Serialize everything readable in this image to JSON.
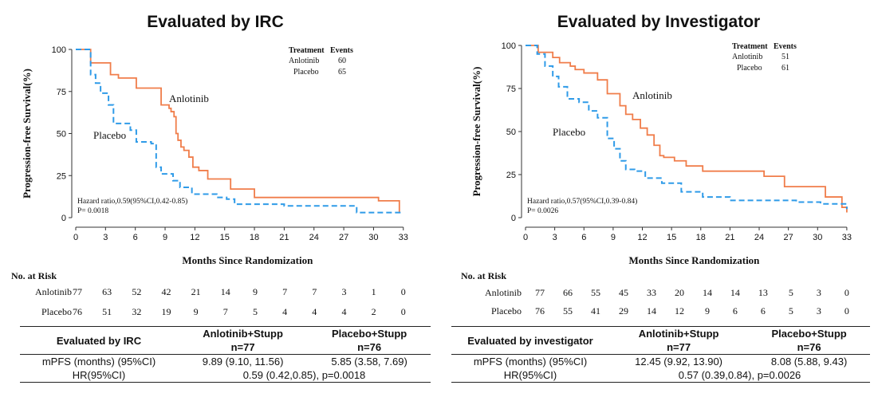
{
  "chart_data": [
    {
      "type": "line",
      "subtype": "kaplan-meier",
      "title": "Evaluated by IRC",
      "xlabel": "Months Since Randomization",
      "ylabel": "Progression-free Survival(%)",
      "xlim": [
        0,
        33.5
      ],
      "ylim": [
        0,
        100
      ],
      "xticks": [
        0,
        3,
        6,
        9,
        12,
        15,
        18,
        21,
        24,
        27,
        30,
        33
      ],
      "yticks": [
        0,
        25,
        50,
        75,
        100
      ],
      "legend": {
        "header": [
          "Treatment",
          "Events"
        ],
        "rows": [
          {
            "name": "Anlotinib",
            "events": "60"
          },
          {
            "name": "Placebo",
            "events": "65"
          }
        ]
      },
      "series": [
        {
          "name": "Anlotinib",
          "label": "Anlotinib",
          "color": "#f07d4a",
          "dash": false,
          "x": [
            0,
            1.4,
            1.5,
            3.3,
            3.5,
            4.3,
            5.8,
            6.1,
            8.2,
            8.6,
            9.4,
            9.6,
            9.9,
            10.1,
            10.3,
            10.6,
            10.9,
            11.4,
            11.8,
            12.4,
            13.3,
            15.6,
            18.0,
            30.5,
            32.6
          ],
          "y": [
            100,
            100,
            92,
            92,
            85,
            83,
            83,
            77,
            77,
            67,
            65,
            63,
            60,
            50,
            46,
            42,
            40,
            36,
            30,
            28,
            23,
            17,
            12,
            10,
            3
          ]
        },
        {
          "name": "Placebo",
          "label": "Placebo",
          "color": "#2f9be8",
          "dash": true,
          "x": [
            0,
            1.3,
            1.5,
            2.0,
            2.5,
            3.3,
            3.8,
            5.5,
            6.1,
            7.6,
            8.1,
            8.6,
            9.8,
            10.5,
            11.7,
            14.2,
            15.2,
            16.0,
            21.0,
            28.3,
            32.8
          ],
          "y": [
            100,
            100,
            85,
            80,
            74,
            67,
            56,
            52,
            45,
            44,
            30,
            26,
            22,
            18,
            14,
            12,
            11,
            8,
            7,
            3,
            3
          ]
        }
      ],
      "annotations": [
        "Hazard ratio,0.59(95%CI,0.42-0.85)",
        "P= 0.0018"
      ]
    },
    {
      "type": "line",
      "subtype": "kaplan-meier",
      "title": "Evaluated by Investigator",
      "xlabel": "Months Since Randomization",
      "ylabel": "Progression-free Survival(%)",
      "xlim": [
        0,
        33.5
      ],
      "ylim": [
        0,
        100
      ],
      "xticks": [
        0,
        3,
        6,
        9,
        12,
        15,
        18,
        21,
        24,
        27,
        30,
        33
      ],
      "yticks": [
        0,
        25,
        50,
        75,
        100
      ],
      "legend": {
        "header": [
          "Treatment",
          "Events"
        ],
        "rows": [
          {
            "name": "Anlotinib",
            "events": "51"
          },
          {
            "name": "Placebo",
            "events": "61"
          }
        ]
      },
      "series": [
        {
          "name": "Anlotinib",
          "label": "Anlotinib",
          "color": "#f07d4a",
          "dash": false,
          "x": [
            0,
            1.3,
            2.8,
            3.5,
            4.6,
            5.1,
            6.0,
            7.4,
            8.4,
            9.7,
            10.3,
            11.0,
            11.8,
            12.5,
            13.2,
            13.8,
            14.2,
            15.3,
            16.5,
            18.2,
            24.5,
            26.6,
            30.8,
            32.5,
            33.0
          ],
          "y": [
            100,
            96,
            93,
            90,
            88,
            86,
            84,
            80,
            72,
            65,
            60,
            57,
            52,
            48,
            42,
            36,
            35,
            33,
            30,
            27,
            24,
            18,
            12,
            6,
            3
          ]
        },
        {
          "name": "Placebo",
          "label": "Placebo",
          "color": "#2f9be8",
          "dash": true,
          "x": [
            0,
            1.2,
            2.0,
            2.8,
            3.4,
            4.3,
            5.5,
            6.5,
            7.4,
            8.4,
            9.1,
            9.7,
            10.3,
            11.2,
            12.3,
            14.0,
            16.0,
            18.2,
            21.0,
            27.8,
            30.3,
            33.0
          ],
          "y": [
            100,
            95,
            88,
            82,
            76,
            69,
            67,
            62,
            58,
            46,
            40,
            33,
            28,
            27,
            23,
            20,
            15,
            12,
            10,
            9,
            8,
            5
          ]
        }
      ],
      "annotations": [
        "Hazard ratio,0.57(95%CI,0.39-0.84)",
        "P= 0.0026"
      ]
    }
  ],
  "panels": [
    {
      "title": "Evaluated by IRC",
      "risk": {
        "header": "No. at Risk",
        "rows": [
          {
            "label": "Anlotinib",
            "values": [
              "77",
              "63",
              "52",
              "42",
              "21",
              "14",
              "9",
              "7",
              "7",
              "3",
              "1",
              "0"
            ]
          },
          {
            "label": "Placebo",
            "values": [
              "76",
              "51",
              "32",
              "19",
              "9",
              "7",
              "5",
              "4",
              "4",
              "4",
              "2",
              "0"
            ]
          }
        ]
      },
      "summary": {
        "title": "Evaluated by IRC",
        "col1": "Anlotinib+Stupp",
        "col2": "Placebo+Stupp",
        "n1": "n=77",
        "n2": "n=76",
        "mpfs_label": "mPFS (months) (95%CI)",
        "mpfs1": "9.89 (9.10, 11.56)",
        "mpfs2": "5.85 (3.58, 7.69)",
        "hr_label": "HR(95%CI)",
        "hr_value": "0.59 (0.42,0.85), p=0.0018"
      }
    },
    {
      "title": "Evaluated by Investigator",
      "risk": {
        "header": "No. at Risk",
        "rows": [
          {
            "label": "Anlotinib",
            "values": [
              "77",
              "66",
              "55",
              "45",
              "33",
              "20",
              "14",
              "14",
              "13",
              "5",
              "3",
              "0"
            ]
          },
          {
            "label": "Placebo",
            "values": [
              "76",
              "55",
              "41",
              "29",
              "14",
              "12",
              "9",
              "6",
              "6",
              "5",
              "3",
              "0"
            ]
          }
        ]
      },
      "summary": {
        "title": "Evaluated by investigator",
        "col1": "Anlotinib+Stupp",
        "col2": "Placebo+Stupp",
        "n1": "n=77",
        "n2": "n=76",
        "mpfs_label": "mPFS (months)  (95%CI)",
        "mpfs1": "12.45 (9.92, 13.90)",
        "mpfs2": "8.08 (5.88, 9.43)",
        "hr_label": "HR(95%CI)",
        "hr_value": "0.57 (0.39,0.84), p=0.0026"
      }
    }
  ]
}
